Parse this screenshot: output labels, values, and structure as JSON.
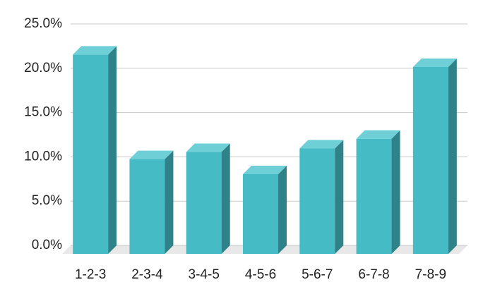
{
  "chart_data": {
    "type": "bar3d",
    "categories": [
      "1-2-3",
      "2-3-4",
      "3-4-5",
      "4-5-6",
      "5-6-7",
      "6-7-8",
      "7-8-9"
    ],
    "values": [
      22.5,
      10.7,
      11.5,
      9.0,
      11.9,
      13.0,
      21.1
    ],
    "color": "#45bbc5",
    "ylim": [
      0,
      25
    ],
    "yticks": [
      {
        "value": 0,
        "label": "0.0%"
      },
      {
        "value": 5,
        "label": "5.0%"
      },
      {
        "value": 10,
        "label": "10.0%"
      },
      {
        "value": 15,
        "label": "15.0%"
      },
      {
        "value": 20,
        "label": "20.0%"
      },
      {
        "value": 25,
        "label": "25.0%"
      }
    ],
    "grid": true
  }
}
